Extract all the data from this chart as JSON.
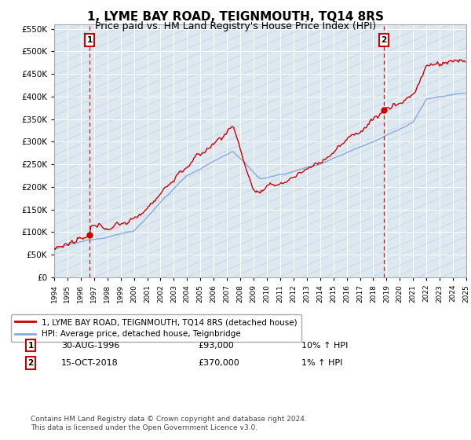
{
  "title": "1, LYME BAY ROAD, TEIGNMOUTH, TQ14 8RS",
  "subtitle": "Price paid vs. HM Land Registry's House Price Index (HPI)",
  "ylim": [
    0,
    560000
  ],
  "yticks": [
    0,
    50000,
    100000,
    150000,
    200000,
    250000,
    300000,
    350000,
    400000,
    450000,
    500000,
    550000
  ],
  "ytick_labels": [
    "£0",
    "£50K",
    "£100K",
    "£150K",
    "£200K",
    "£250K",
    "£300K",
    "£350K",
    "£400K",
    "£450K",
    "£500K",
    "£550K"
  ],
  "xlim_start": 1994,
  "xlim_end": 2025,
  "sale1_date": 1996.66,
  "sale1_price": 93000,
  "sale1_label": "1",
  "sale2_date": 2018.79,
  "sale2_price": 370000,
  "sale2_label": "2",
  "legend_label1": "1, LYME BAY ROAD, TEIGNMOUTH, TQ14 8RS (detached house)",
  "legend_label2": "HPI: Average price, detached house, Teignbridge",
  "footer": "Contains HM Land Registry data © Crown copyright and database right 2024.\nThis data is licensed under the Open Government Licence v3.0.",
  "line_color_red": "#cc0000",
  "line_color_blue": "#88aadd",
  "background_color": "#dde8f0",
  "sale_marker_color": "#cc0000",
  "sale_box_color": "#cc0000",
  "hatch_color": "#c8d8e8",
  "grid_color": "#f0f0f0",
  "title_fontsize": 11,
  "subtitle_fontsize": 9
}
